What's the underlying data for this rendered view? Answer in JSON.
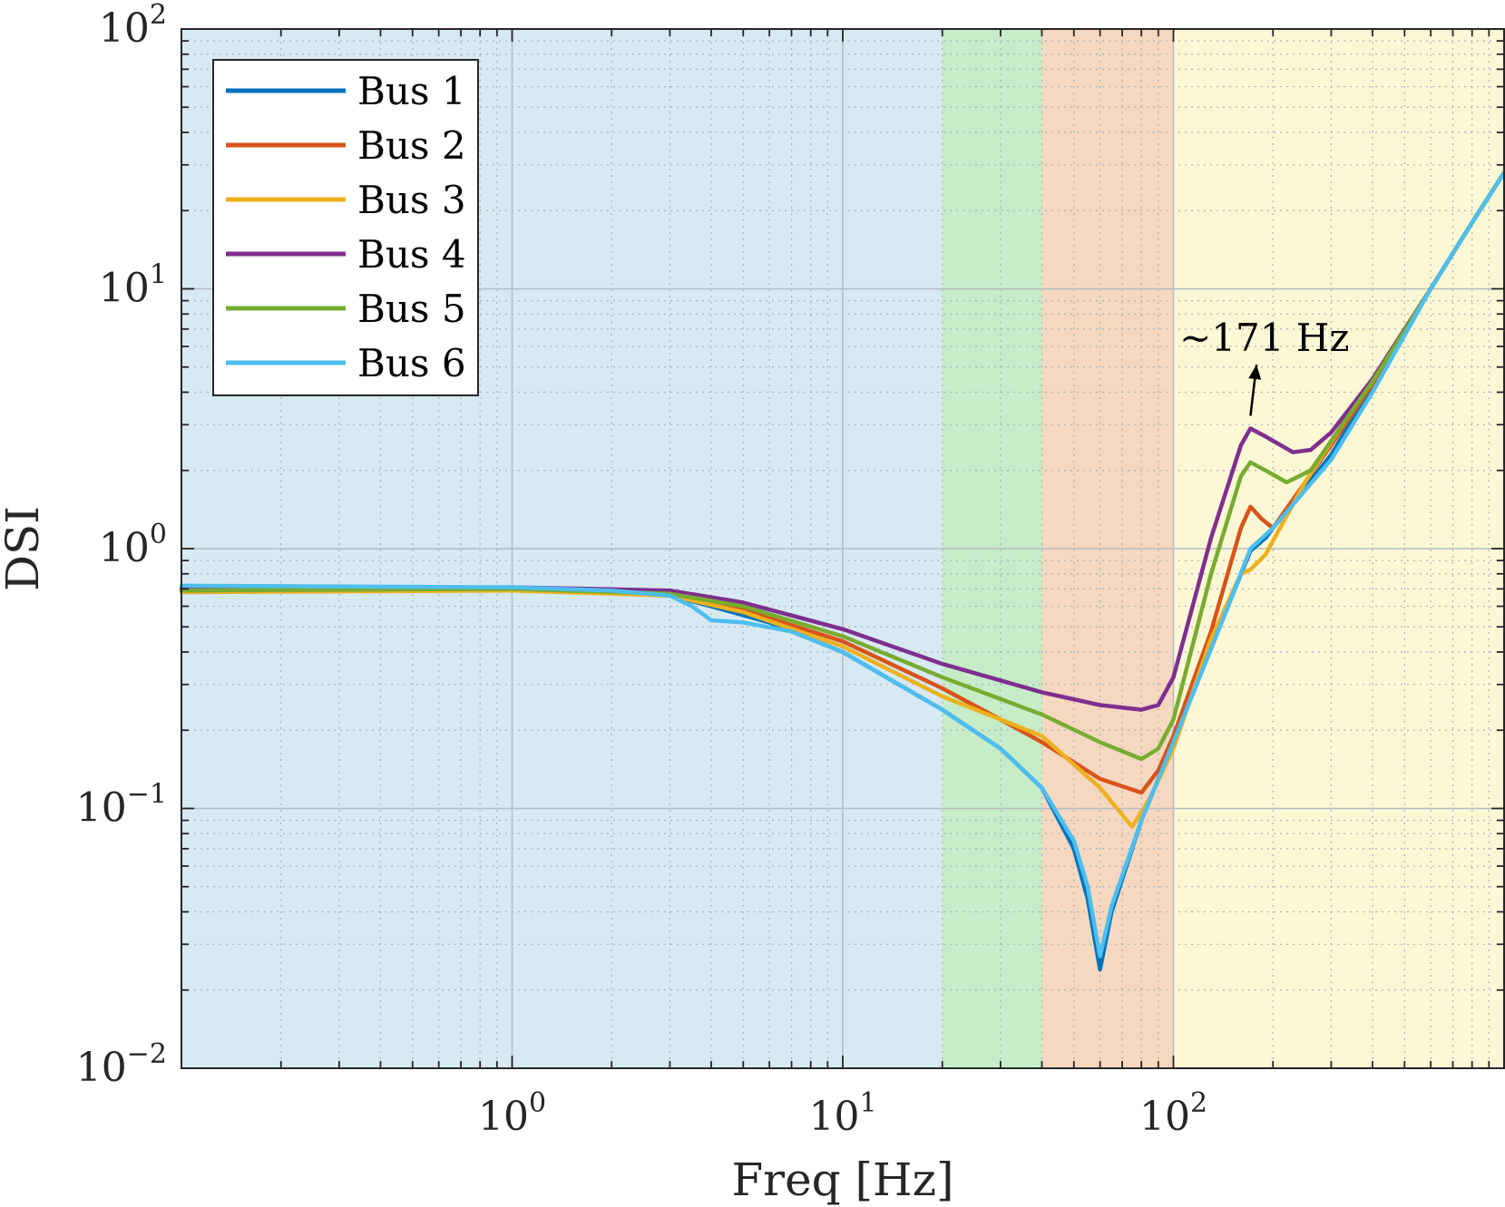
{
  "chart_data": {
    "type": "line",
    "title": "",
    "xlabel": "Freq [Hz]",
    "ylabel": "DSI",
    "x_scale": "log",
    "y_scale": "log",
    "xlim": [
      0.1,
      1000
    ],
    "ylim": [
      0.01,
      100
    ],
    "x_ticks": [
      {
        "value": 1,
        "base": "10",
        "exp": "0"
      },
      {
        "value": 10,
        "base": "10",
        "exp": "1"
      },
      {
        "value": 100,
        "base": "10",
        "exp": "2"
      }
    ],
    "y_ticks": [
      {
        "value": 0.01,
        "base": "10",
        "exp": "−2"
      },
      {
        "value": 0.1,
        "base": "10",
        "exp": "−1"
      },
      {
        "value": 1,
        "base": "10",
        "exp": "0"
      },
      {
        "value": 10,
        "base": "10",
        "exp": "1"
      },
      {
        "value": 100,
        "base": "10",
        "exp": "2"
      }
    ],
    "grid": true,
    "minor_grid": true,
    "legend_position": "top-left",
    "bands": [
      {
        "from": 0.1,
        "to": 20,
        "color": "#d7e9f3"
      },
      {
        "from": 20,
        "to": 40,
        "color": "#c6ecc8"
      },
      {
        "from": 40,
        "to": 100,
        "color": "#f5d8bf"
      },
      {
        "from": 100,
        "to": 1000,
        "color": "#fcf8d5"
      }
    ],
    "annotation": {
      "text": "~171 Hz",
      "x": 171,
      "y": 2.9,
      "text_x": 190,
      "text_y": 6.5
    },
    "series": [
      {
        "name": "Bus 1",
        "color": "#0072bd",
        "points": [
          [
            0.1,
            0.7
          ],
          [
            1,
            0.7
          ],
          [
            2,
            0.69
          ],
          [
            3,
            0.66
          ],
          [
            4,
            0.6
          ],
          [
            6,
            0.52
          ],
          [
            10,
            0.4
          ],
          [
            20,
            0.24
          ],
          [
            30,
            0.17
          ],
          [
            40,
            0.12
          ],
          [
            50,
            0.07
          ],
          [
            55,
            0.045
          ],
          [
            60,
            0.024
          ],
          [
            65,
            0.04
          ],
          [
            80,
            0.09
          ],
          [
            100,
            0.18
          ],
          [
            150,
            0.65
          ],
          [
            171,
            0.98
          ],
          [
            190,
            1.1
          ],
          [
            200,
            1.2
          ],
          [
            300,
            2.3
          ],
          [
            400,
            4.2
          ],
          [
            600,
            10
          ],
          [
            800,
            18
          ],
          [
            1000,
            28
          ]
        ]
      },
      {
        "name": "Bus 2",
        "color": "#d95319",
        "points": [
          [
            0.1,
            0.69
          ],
          [
            1,
            0.7
          ],
          [
            3,
            0.66
          ],
          [
            5,
            0.58
          ],
          [
            10,
            0.44
          ],
          [
            20,
            0.29
          ],
          [
            30,
            0.22
          ],
          [
            40,
            0.18
          ],
          [
            60,
            0.13
          ],
          [
            80,
            0.115
          ],
          [
            90,
            0.14
          ],
          [
            100,
            0.19
          ],
          [
            130,
            0.48
          ],
          [
            160,
            1.2
          ],
          [
            171,
            1.45
          ],
          [
            185,
            1.3
          ],
          [
            200,
            1.2
          ],
          [
            300,
            2.5
          ],
          [
            400,
            4.3
          ],
          [
            600,
            10
          ],
          [
            800,
            18
          ],
          [
            1000,
            28
          ]
        ]
      },
      {
        "name": "Bus 3",
        "color": "#edb120",
        "points": [
          [
            0.1,
            0.68
          ],
          [
            1,
            0.69
          ],
          [
            3,
            0.66
          ],
          [
            5,
            0.57
          ],
          [
            10,
            0.42
          ],
          [
            20,
            0.27
          ],
          [
            30,
            0.22
          ],
          [
            40,
            0.19
          ],
          [
            60,
            0.12
          ],
          [
            75,
            0.085
          ],
          [
            85,
            0.11
          ],
          [
            100,
            0.17
          ],
          [
            130,
            0.45
          ],
          [
            160,
            0.8
          ],
          [
            171,
            0.83
          ],
          [
            190,
            0.95
          ],
          [
            250,
            1.8
          ],
          [
            400,
            4.5
          ],
          [
            600,
            10
          ],
          [
            800,
            18
          ],
          [
            1000,
            28
          ]
        ]
      },
      {
        "name": "Bus 4",
        "color": "#7e2f8e",
        "points": [
          [
            0.1,
            0.7
          ],
          [
            1,
            0.71
          ],
          [
            3,
            0.69
          ],
          [
            5,
            0.62
          ],
          [
            10,
            0.49
          ],
          [
            20,
            0.36
          ],
          [
            40,
            0.28
          ],
          [
            60,
            0.25
          ],
          [
            80,
            0.24
          ],
          [
            90,
            0.25
          ],
          [
            100,
            0.32
          ],
          [
            130,
            1.1
          ],
          [
            160,
            2.5
          ],
          [
            171,
            2.9
          ],
          [
            190,
            2.7
          ],
          [
            230,
            2.35
          ],
          [
            260,
            2.4
          ],
          [
            300,
            2.8
          ],
          [
            400,
            4.5
          ],
          [
            600,
            10
          ],
          [
            800,
            18
          ],
          [
            1000,
            28
          ]
        ]
      },
      {
        "name": "Bus 5",
        "color": "#77ac30",
        "points": [
          [
            0.1,
            0.69
          ],
          [
            1,
            0.7
          ],
          [
            3,
            0.67
          ],
          [
            5,
            0.6
          ],
          [
            10,
            0.46
          ],
          [
            20,
            0.32
          ],
          [
            40,
            0.23
          ],
          [
            60,
            0.18
          ],
          [
            80,
            0.155
          ],
          [
            90,
            0.17
          ],
          [
            100,
            0.22
          ],
          [
            130,
            0.8
          ],
          [
            160,
            1.9
          ],
          [
            171,
            2.15
          ],
          [
            190,
            2.0
          ],
          [
            220,
            1.8
          ],
          [
            260,
            2.0
          ],
          [
            300,
            2.6
          ],
          [
            400,
            4.4
          ],
          [
            600,
            10
          ],
          [
            800,
            18
          ],
          [
            1000,
            28
          ]
        ]
      },
      {
        "name": "Bus 6",
        "color": "#4dbeee",
        "points": [
          [
            0.1,
            0.72
          ],
          [
            1,
            0.71
          ],
          [
            2,
            0.69
          ],
          [
            3,
            0.66
          ],
          [
            3.5,
            0.6
          ],
          [
            4,
            0.53
          ],
          [
            5,
            0.52
          ],
          [
            7,
            0.48
          ],
          [
            10,
            0.4
          ],
          [
            20,
            0.24
          ],
          [
            30,
            0.17
          ],
          [
            40,
            0.12
          ],
          [
            50,
            0.075
          ],
          [
            55,
            0.05
          ],
          [
            60,
            0.027
          ],
          [
            65,
            0.042
          ],
          [
            80,
            0.09
          ],
          [
            100,
            0.18
          ],
          [
            150,
            0.65
          ],
          [
            171,
            1.0
          ],
          [
            200,
            1.2
          ],
          [
            300,
            2.2
          ],
          [
            400,
            4.0
          ],
          [
            600,
            10
          ],
          [
            800,
            18
          ],
          [
            1000,
            28
          ]
        ]
      }
    ]
  }
}
